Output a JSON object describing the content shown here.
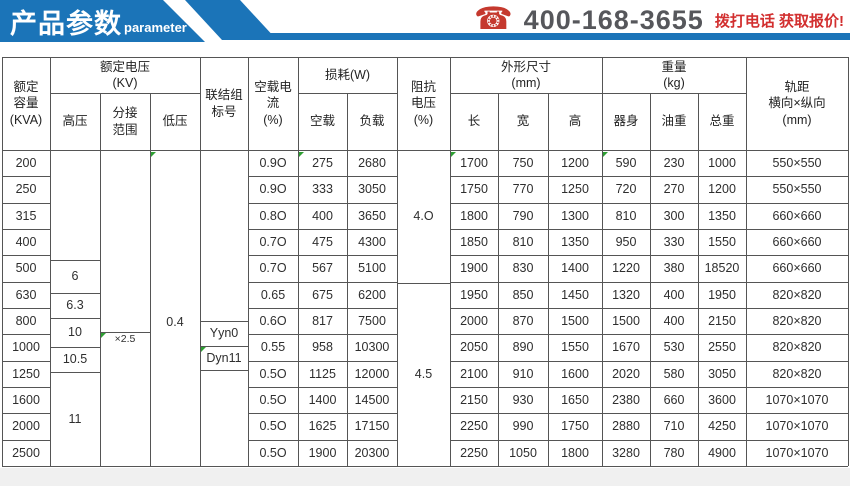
{
  "banner": {
    "title": "产品参数",
    "subtitle": "parameter",
    "phone": "400-168-3655",
    "cta": "拨打电话 获取报价!",
    "colors": {
      "blue": "#1b74b8",
      "red": "#d22f2f",
      "phone_text": "#56575b"
    }
  },
  "table": {
    "headers": {
      "capacity": "额定\n容量\n(KVA)",
      "voltage_group": "额定电压\n(KV)",
      "hv": "高压",
      "tap_range": "分接\n范围",
      "lv": "低压",
      "vector_group": "联结组\n标号",
      "idle_current": "空载电\n流\n(%)",
      "loss_group": "损耗(W)",
      "loss_no_load": "空载",
      "loss_on_load": "负载",
      "impedance": "阻抗\n电压\n(%)",
      "dims_group": "外形尺寸\n(mm)",
      "dim_length": "长",
      "dim_width": "宽",
      "dim_height": "高",
      "weight_group": "重量\n(kg)",
      "weight_body": "器身",
      "weight_oil": "油重",
      "weight_total": "总重",
      "gauge": "轨距\n横向×纵向\n(mm)"
    },
    "merged": {
      "hv_values": [
        "6",
        "6.3",
        "10",
        "10.5",
        "11"
      ],
      "tap_value": "×2.5",
      "lv_value": "0.4",
      "vector_values": [
        "Yyn0",
        "Dyn11"
      ],
      "impedance_values": [
        "4.O",
        "4.5"
      ]
    },
    "rows": [
      {
        "capacity": "200",
        "idle": "0.9O",
        "no_load": "275",
        "on_load": "2680",
        "length": "1700",
        "width": "750",
        "height": "1200",
        "body": "590",
        "oil": "230",
        "total": "1000",
        "gauge": "550×550"
      },
      {
        "capacity": "250",
        "idle": "0.9O",
        "no_load": "333",
        "on_load": "3050",
        "length": "1750",
        "width": "770",
        "height": "1250",
        "body": "720",
        "oil": "270",
        "total": "1200",
        "gauge": "550×550"
      },
      {
        "capacity": "315",
        "idle": "0.8O",
        "no_load": "400",
        "on_load": "3650",
        "length": "1800",
        "width": "790",
        "height": "1300",
        "body": "810",
        "oil": "300",
        "total": "1350",
        "gauge": "660×660"
      },
      {
        "capacity": "400",
        "idle": "0.7O",
        "no_load": "475",
        "on_load": "4300",
        "length": "1850",
        "width": "810",
        "height": "1350",
        "body": "950",
        "oil": "330",
        "total": "1550",
        "gauge": "660×660"
      },
      {
        "capacity": "500",
        "idle": "0.7O",
        "no_load": "567",
        "on_load": "5100",
        "length": "1900",
        "width": "830",
        "height": "1400",
        "body": "1220",
        "oil": "380",
        "total": "18520",
        "gauge": "660×660"
      },
      {
        "capacity": "630",
        "idle": "0.65",
        "no_load": "675",
        "on_load": "6200",
        "length": "1950",
        "width": "850",
        "height": "1450",
        "body": "1320",
        "oil": "400",
        "total": "1950",
        "gauge": "820×820"
      },
      {
        "capacity": "800",
        "idle": "0.6O",
        "no_load": "817",
        "on_load": "7500",
        "length": "2000",
        "width": "870",
        "height": "1500",
        "body": "1500",
        "oil": "400",
        "total": "2150",
        "gauge": "820×820"
      },
      {
        "capacity": "1000",
        "idle": "0.55",
        "no_load": "958",
        "on_load": "10300",
        "length": "2050",
        "width": "890",
        "height": "1550",
        "body": "1670",
        "oil": "530",
        "total": "2550",
        "gauge": "820×820"
      },
      {
        "capacity": "1250",
        "idle": "0.5O",
        "no_load": "1125",
        "on_load": "12000",
        "length": "2100",
        "width": "910",
        "height": "1600",
        "body": "2020",
        "oil": "580",
        "total": "3050",
        "gauge": "820×820"
      },
      {
        "capacity": "1600",
        "idle": "0.5O",
        "no_load": "1400",
        "on_load": "14500",
        "length": "2150",
        "width": "930",
        "height": "1650",
        "body": "2380",
        "oil": "660",
        "total": "3600",
        "gauge": "1070×1070"
      },
      {
        "capacity": "2000",
        "idle": "0.5O",
        "no_load": "1625",
        "on_load": "17150",
        "length": "2250",
        "width": "990",
        "height": "1750",
        "body": "2880",
        "oil": "710",
        "total": "4250",
        "gauge": "1070×1070"
      },
      {
        "capacity": "2500",
        "idle": "0.5O",
        "no_load": "1900",
        "on_load": "20300",
        "length": "2250",
        "width": "1050",
        "height": "1800",
        "body": "3280",
        "oil": "780",
        "total": "4900",
        "gauge": "1070×1070"
      }
    ]
  }
}
